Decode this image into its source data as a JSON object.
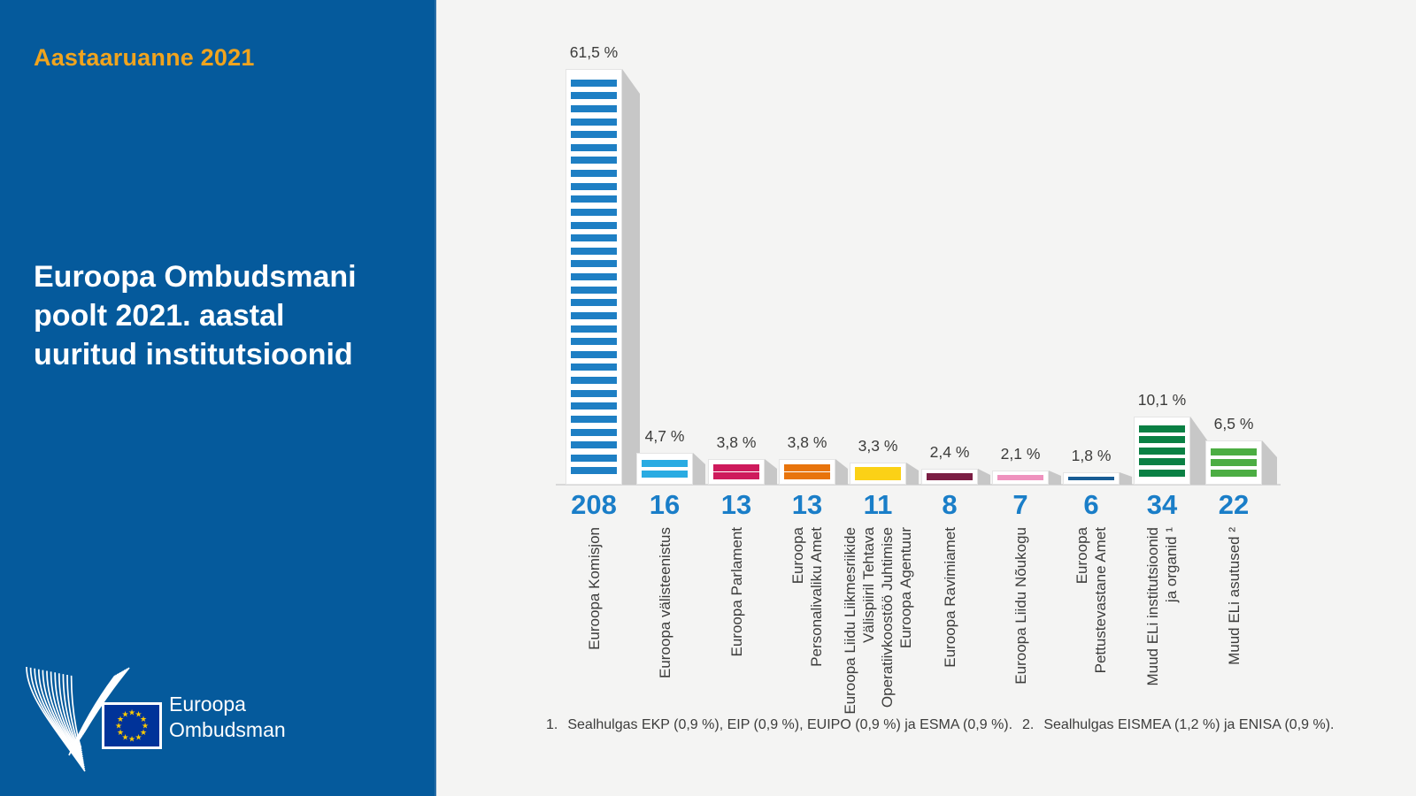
{
  "sidebar": {
    "report_label": "Aastaaruanne 2021",
    "title_lines": [
      "Euroopa Ombudsmani",
      "poolt 2021. aastal",
      "uuritud institutsioonid"
    ],
    "logo_text_lines": [
      "Euroopa",
      "Ombudsman"
    ]
  },
  "theme": {
    "sidebar_bg": "#055A9C",
    "accent_orange": "#F0A41E",
    "chart_bg": "#F4F4F3",
    "value_text_blue": "#1A7EC8",
    "label_text": "#3C3C3B",
    "shadow_gray": "#C7C7C7",
    "baseline_gray": "#D8D8D8",
    "flag_blue": "#003399",
    "flag_star_yellow": "#FFCC00"
  },
  "chart_data": {
    "type": "bar",
    "title": "Euroopa Ombudsmani poolt 2021. aastal uuritud institutsioonid",
    "legend_position": "none",
    "grid": false,
    "categories": [
      "Euroopa Komisjon",
      "Euroopa välisteenistus",
      "Euroopa Parlament",
      "Euroopa Personalivaliku Amet",
      "Euroopa Liidu Liikmesriikide Välispiiril Tehtava Operatiivkoostöö Juhtimise Euroopa Agentuur",
      "Euroopa Ravimiamet",
      "Euroopa Liidu Nõukogu",
      "Euroopa Pettustevastane Amet",
      "Muud ELi institutsioonid ja organid ¹",
      "Muud ELi asutused ²"
    ],
    "items": [
      {
        "label_lines": [
          "Euroopa Komisjon"
        ],
        "value": 208,
        "percent": 61.5,
        "percent_label": "61,5 %",
        "color": "#1E7FC4",
        "stripes": 31
      },
      {
        "label_lines": [
          "Euroopa välisteenistus"
        ],
        "value": 16,
        "percent": 4.7,
        "percent_label": "4,7 %",
        "color": "#29ABE2",
        "stripes": 2
      },
      {
        "label_lines": [
          "Euroopa Parlament"
        ],
        "value": 13,
        "percent": 3.8,
        "percent_label": "3,8 %",
        "color": "#CE1A5C",
        "stripes": 2
      },
      {
        "label_lines": [
          "Euroopa",
          "Personalivaliku Amet"
        ],
        "value": 13,
        "percent": 3.8,
        "percent_label": "3,8 %",
        "color": "#E8740C",
        "stripes": 2
      },
      {
        "label_lines": [
          "Euroopa Liidu Liikmesriikide",
          "Välispiiril Tehtava",
          "Operatiivkoostöö Juhtimise",
          "Euroopa Agentuur"
        ],
        "value": 11,
        "percent": 3.3,
        "percent_label": "3,3 %",
        "color": "#FBD116",
        "stripes": 2
      },
      {
        "label_lines": [
          "Euroopa Ravimiamet"
        ],
        "value": 8,
        "percent": 2.4,
        "percent_label": "2,4 %",
        "color": "#7B1E44",
        "stripes": 1
      },
      {
        "label_lines": [
          "Euroopa Liidu Nõukogu"
        ],
        "value": 7,
        "percent": 2.1,
        "percent_label": "2,1 %",
        "color": "#EF92BE",
        "stripes": 1
      },
      {
        "label_lines": [
          "Euroopa",
          "Pettustevastane Amet"
        ],
        "value": 6,
        "percent": 1.8,
        "percent_label": "1,8 %",
        "color": "#185C94",
        "stripes": 1
      },
      {
        "label_lines": [
          "Muud ELi institutsioonid",
          "ja organid ¹"
        ],
        "value": 34,
        "percent": 10.1,
        "percent_label": "10,1 %",
        "color": "#0A8044",
        "stripes": 5
      },
      {
        "label_lines": [
          "Muud ELi asutused ²"
        ],
        "value": 22,
        "percent": 6.5,
        "percent_label": "6,5 %",
        "color": "#4CAD43",
        "stripes": 3
      }
    ]
  },
  "footnotes": [
    {
      "number": "1.",
      "text": "Sealhulgas EKP (0,9 %), EIP (0,9 %), EUIPO (0,9 %) ja ESMA (0,9 %)."
    },
    {
      "number": "2.",
      "text": "Sealhulgas EISMEA (1,2 %) ja ENISA (0,9 %)."
    }
  ]
}
